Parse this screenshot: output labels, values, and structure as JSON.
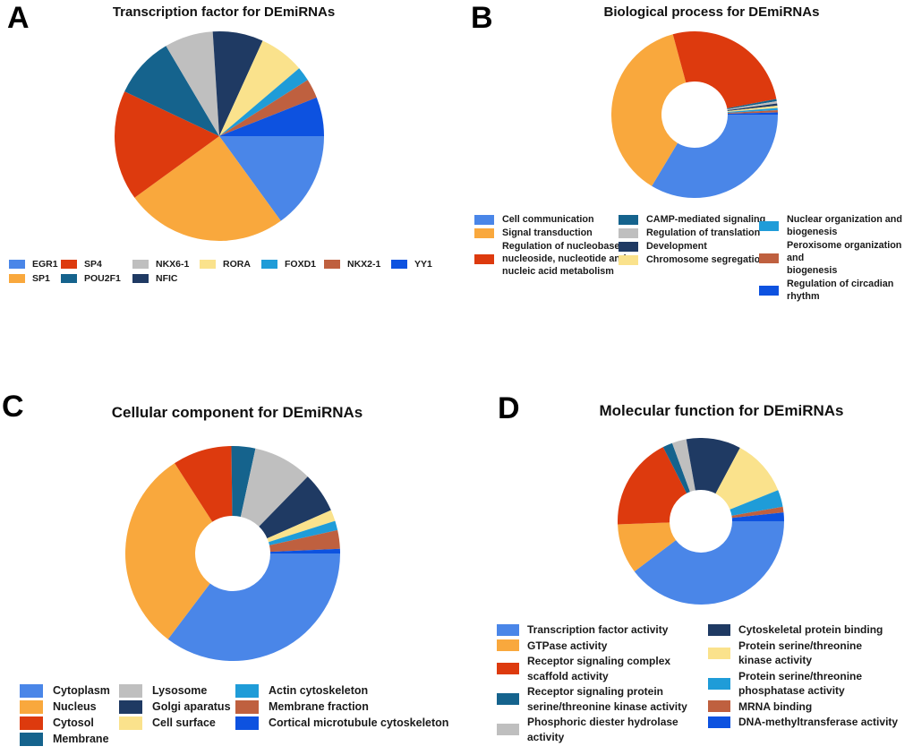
{
  "figure": {
    "background": "#ffffff",
    "panel_letters": [
      "A",
      "B",
      "C",
      "D"
    ]
  },
  "palette": {
    "blue": "#4a86e8",
    "orange": "#f9a83d",
    "red": "#dd3a0e",
    "teal": "#15638d",
    "gray": "#bfbfbf",
    "navy": "#1f3a63",
    "yellow": "#fae28c",
    "cyan": "#1f9cd8",
    "brown": "#bf603f",
    "blue2": "#0d52e0"
  },
  "chart_data": [
    {
      "id": "a",
      "panel_letter": "A",
      "type": "pie",
      "title": "Transcription factor for DEmiRNAs",
      "start_angle_deg_from_top": 90,
      "direction": "clockwise",
      "legend_position": "bottom",
      "value_unit": "percent (estimated from slice angles)",
      "slices": [
        {
          "label": "EGR1",
          "value": 15.0,
          "color": "blue"
        },
        {
          "label": "SP1",
          "value": 25.0,
          "color": "orange"
        },
        {
          "label": "SP4",
          "value": 17.0,
          "color": "red"
        },
        {
          "label": "POU2F1",
          "value": 9.5,
          "color": "teal"
        },
        {
          "label": "NKX6-1",
          "value": 7.5,
          "color": "gray"
        },
        {
          "label": "NFIC",
          "value": 7.8,
          "color": "navy"
        },
        {
          "label": "RORA",
          "value": 7.0,
          "color": "yellow"
        },
        {
          "label": "FOXD1",
          "value": 2.2,
          "color": "cyan"
        },
        {
          "label": "NKX2-1",
          "value": 3.0,
          "color": "brown"
        },
        {
          "label": "YY1",
          "value": 6.0,
          "color": "blue2"
        }
      ],
      "legend_columns": [
        [
          0,
          1
        ],
        [
          2,
          3
        ],
        [
          4,
          5
        ],
        [
          6
        ],
        [
          7
        ],
        [
          8
        ],
        [
          9
        ]
      ]
    },
    {
      "id": "b",
      "panel_letter": "B",
      "type": "donut",
      "title": "Biological process for DEmiRNAs",
      "start_angle_deg_from_top": 90,
      "direction": "clockwise",
      "legend_position": "bottom",
      "value_unit": "percent (estimated from slice angles)",
      "slices": [
        {
          "label": "Cell communication",
          "value": 33.6,
          "color": "blue"
        },
        {
          "label": "Signal transduction",
          "value": 37.2,
          "color": "orange"
        },
        {
          "label": "Regulation of nucleobase, nucleoside, nucleotide and nucleic acid metabolism",
          "legend_label": "Regulation of nucleobase,\nnucleoside, nucleotide and\nnucleic acid metabolism",
          "value": 26.2,
          "color": "red"
        },
        {
          "label": "CAMP-mediated signaling",
          "value": 0.43,
          "color": "teal"
        },
        {
          "label": "Regulation of translation",
          "value": 0.43,
          "color": "gray"
        },
        {
          "label": "Development",
          "value": 0.43,
          "color": "navy"
        },
        {
          "label": "Chromosome segregation",
          "value": 0.43,
          "color": "yellow"
        },
        {
          "label": "Nuclear organization and biogenesis",
          "legend_label": "Nuclear organization and\nbiogenesis",
          "value": 0.43,
          "color": "cyan"
        },
        {
          "label": "Peroxisome organization and biogenesis",
          "legend_label": "Peroxisome organization and\nbiogenesis",
          "value": 0.43,
          "color": "brown"
        },
        {
          "label": "Regulation of circadian rhythm",
          "value": 0.43,
          "color": "blue2"
        }
      ],
      "legend_columns": [
        [
          0,
          1,
          2
        ],
        [
          3,
          4,
          5,
          6
        ],
        [
          7,
          8,
          9
        ]
      ]
    },
    {
      "id": "c",
      "panel_letter": "C",
      "type": "donut",
      "title": "Cellular component for DEmiRNAs",
      "start_angle_deg_from_top": 90,
      "direction": "clockwise",
      "legend_position": "bottom",
      "value_unit": "percent (estimated from slice angles)",
      "slices": [
        {
          "label": "Cytoplasm",
          "value": 35.3,
          "color": "blue"
        },
        {
          "label": "Nucleus",
          "value": 30.6,
          "color": "orange"
        },
        {
          "label": "Cytosol",
          "value": 8.9,
          "color": "red"
        },
        {
          "label": "Membrane",
          "value": 3.6,
          "color": "teal"
        },
        {
          "label": "Lysosome",
          "value": 8.9,
          "color": "gray"
        },
        {
          "label": "Golgi aparatus",
          "value": 6.1,
          "color": "navy"
        },
        {
          "label": "Cell surface",
          "value": 1.7,
          "color": "yellow"
        },
        {
          "label": "Actin cytoskeleton",
          "value": 1.4,
          "color": "cyan"
        },
        {
          "label": "Membrane fraction",
          "value": 2.8,
          "color": "brown"
        },
        {
          "label": "Cortical microtubule cytoskeleton",
          "value": 0.7,
          "color": "blue2"
        }
      ],
      "legend_columns": [
        [
          0,
          1,
          2,
          3
        ],
        [
          4,
          5,
          6
        ],
        [
          7,
          8,
          9
        ]
      ]
    },
    {
      "id": "d",
      "panel_letter": "D",
      "type": "donut",
      "title": "Molecular function for DEmiRNAs",
      "start_angle_deg_from_top": 90,
      "direction": "clockwise",
      "legend_position": "bottom",
      "value_unit": "percent (estimated from slice angles)",
      "slices": [
        {
          "label": "Transcription factor activity",
          "value": 39.7,
          "color": "blue"
        },
        {
          "label": "GTPase activity",
          "value": 9.7,
          "color": "orange"
        },
        {
          "label": "Receptor signaling complex scaffold activity",
          "legend_label": "Receptor signaling complex\nscaffold activity",
          "value": 18.1,
          "color": "red"
        },
        {
          "label": "Receptor signaling protein serine/threonine kinase activity",
          "legend_label": "Receptor signaling protein\nserine/threonine kinase activity",
          "value": 1.9,
          "color": "teal"
        },
        {
          "label": "Phosphoric diester hydrolase activity",
          "legend_label": "Phosphoric diester hydrolase\nactivity",
          "value": 2.8,
          "color": "gray"
        },
        {
          "label": "Cytoskeletal protein binding",
          "value": 10.6,
          "color": "navy"
        },
        {
          "label": "Protein serine/threonine kinase activity",
          "legend_label": "Protein serine/threonine\nkinase activity",
          "value": 11.1,
          "color": "yellow"
        },
        {
          "label": "Protein serine/threonine phosphatase activity",
          "legend_label": "Protein serine/threonine\nphosphatase activity",
          "value": 3.3,
          "color": "cyan"
        },
        {
          "label": "MRNA binding",
          "value": 1.1,
          "color": "brown"
        },
        {
          "label": "DNA-methyltransferase activity",
          "value": 1.7,
          "color": "blue2"
        }
      ],
      "legend_columns": [
        [
          0,
          1,
          2,
          3,
          4
        ],
        [
          5,
          6,
          7,
          8,
          9
        ]
      ]
    }
  ]
}
